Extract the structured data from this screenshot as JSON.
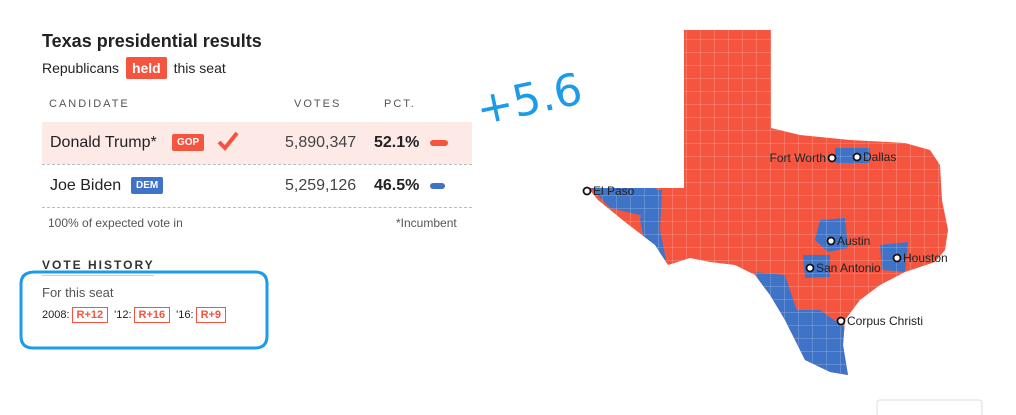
{
  "header": {
    "title": "Texas presidential results",
    "subtitle_prefix": "Republicans",
    "badge": "held",
    "subtitle_suffix": "this seat"
  },
  "table": {
    "columns": [
      "CANDIDATE",
      "VOTES",
      "PCT."
    ],
    "rows": [
      {
        "name": "Donald Trump*",
        "party": "GOP",
        "votes": "5,890,347",
        "pct": "52.1%"
      },
      {
        "name": "Joe Biden",
        "party": "DEM",
        "votes": "5,259,126",
        "pct": "46.5%"
      }
    ]
  },
  "footer": {
    "note": "100% of expected vote in",
    "incumbent": "*Incumbent"
  },
  "history": {
    "title": "VOTE HISTORY",
    "subtitle": "For this seat",
    "items": [
      {
        "label": "2008:",
        "value": "R+12"
      },
      {
        "label": "'12:",
        "value": "R+16"
      },
      {
        "label": "'16:",
        "value": "R+9"
      }
    ]
  },
  "map": {
    "cities": [
      "Fort Worth",
      "Dallas",
      "El Paso",
      "Austin",
      "San Antonio",
      "Houston",
      "Corpus Christi"
    ]
  },
  "annotation": "+5.6"
}
